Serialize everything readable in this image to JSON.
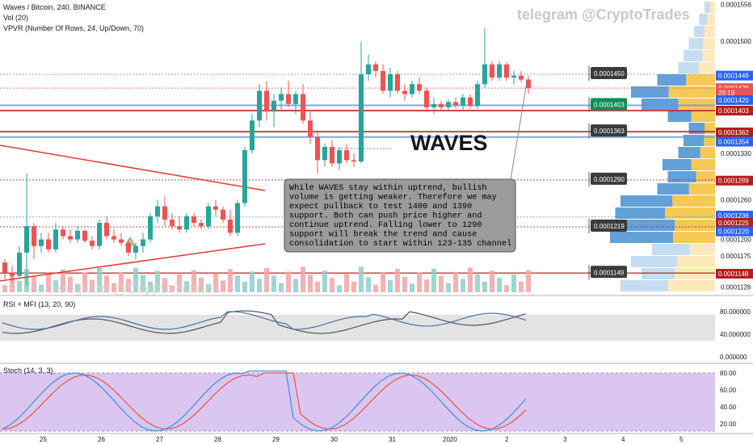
{
  "header": {
    "symbol_line": "Waves / Bitcoin, 240, BINANCE",
    "vol_line": "Vol (20)",
    "vpvr_line": "VPVR (Number Of Rows, 24, Up/Down, 70)",
    "watermark": "telegram @CryptoTrades"
  },
  "colors": {
    "up": "#26a69a",
    "down": "#ef5350",
    "vol_up": "#8fcfc9",
    "vol_down": "#f5a5a3",
    "vpvr_up": "#5b9bd5",
    "vpvr_down": "#f5c242",
    "stoch_bg": "#dbc6f2",
    "rsi_bg": "#e3e3e3"
  },
  "annotation": {
    "title": "WAVES",
    "note": "While WAVES stay within uptrend, bullish\nvolume is getting weaker. Therefore we may\nexpect pullback to test 1400 and 1390\nsupport. Both can push price higher and\ncontinue uptrend. Falling lower to 1290\nsupport will break the trend and cause\nconsolidation to start within 123-135 channel"
  },
  "price_flags": [
    {
      "label": "0.0001450",
      "value": 0.000145,
      "green": false
    },
    {
      "label": "0.0001403",
      "value": 0.0001403,
      "green": true
    },
    {
      "label": "0.0001363",
      "value": 0.0001363,
      "green": false
    },
    {
      "label": "0.0001290",
      "value": 0.000129,
      "green": false
    },
    {
      "label": "0.0001219",
      "value": 0.0001219,
      "green": false
    },
    {
      "label": "0.0001149",
      "value": 0.0001149,
      "green": false
    }
  ],
  "price_axis": {
    "ticks": [
      "0.0001556",
      "0.0001500",
      "0.0001330",
      "0.0001260",
      "0.0001200",
      "0.0001175",
      "0.0001128"
    ],
    "badges": [
      {
        "label": "0.0001448",
        "color": "#2962ff",
        "value": 0.0001448
      },
      {
        "label": "0.0001429",
        "color": "#ef5350",
        "value": 0.0001429
      },
      {
        "label": "20:19",
        "color": "#ef5350",
        "value": 0.0001422
      },
      {
        "label": "0.0001420",
        "color": "#2962ff",
        "value": 0.0001411
      },
      {
        "label": "0.0001403",
        "color": "#b71c1c",
        "value": 0.0001395
      },
      {
        "label": "0.0001362",
        "color": "#b71c1c",
        "value": 0.0001362
      },
      {
        "label": "0.0001354",
        "color": "#2962ff",
        "value": 0.0001348
      },
      {
        "label": "0.0001289",
        "color": "#b71c1c",
        "value": 0.0001289
      },
      {
        "label": "0.0001236",
        "color": "#2962ff",
        "value": 0.0001236
      },
      {
        "label": "0.0001225",
        "color": "#b71c1c",
        "value": 0.0001225
      },
      {
        "label": "0.0001220",
        "color": "#2962ff",
        "value": 0.0001212
      },
      {
        "label": "0.0001148",
        "color": "#b71c1c",
        "value": 0.0001148
      }
    ]
  },
  "rsi": {
    "label": "RSI + MFI (13, 20, 90)",
    "ticks": [
      "80.000000",
      "40.000000",
      "0.000000"
    ]
  },
  "stoch": {
    "label": "Stoch (14, 3, 3)",
    "ticks": [
      "80.00",
      "60.00",
      "40.00",
      "20.00"
    ]
  },
  "time_axis": [
    "25",
    "26",
    "27",
    "28",
    "29",
    "30",
    "31",
    "2020",
    "2",
    "3",
    "4",
    "5"
  ],
  "chart_data": {
    "type": "candlestick",
    "title": "Waves / Bitcoin, 240, BINANCE",
    "ylim": [
      0.000112,
      0.000156
    ],
    "candles": [
      {
        "o": 0.0001165,
        "h": 0.000117,
        "l": 0.000114,
        "c": 0.000115
      },
      {
        "o": 0.000115,
        "h": 0.000116,
        "l": 0.0001135,
        "c": 0.0001145
      },
      {
        "o": 0.0001145,
        "h": 0.000119,
        "l": 0.000114,
        "c": 0.000118
      },
      {
        "o": 0.000118,
        "h": 0.00013,
        "l": 0.000113,
        "c": 0.000122
      },
      {
        "o": 0.000122,
        "h": 0.0001225,
        "l": 0.000117,
        "c": 0.000119
      },
      {
        "o": 0.000119,
        "h": 0.000121,
        "l": 0.000118,
        "c": 0.00012
      },
      {
        "o": 0.00012,
        "h": 0.000121,
        "l": 0.000118,
        "c": 0.0001185
      },
      {
        "o": 0.0001185,
        "h": 0.0001225,
        "l": 0.000118,
        "c": 0.0001215
      },
      {
        "o": 0.0001215,
        "h": 0.000122,
        "l": 0.00012,
        "c": 0.0001205
      },
      {
        "o": 0.0001205,
        "h": 0.0001215,
        "l": 0.0001195,
        "c": 0.00012
      },
      {
        "o": 0.00012,
        "h": 0.000122,
        "l": 0.0001195,
        "c": 0.0001213
      },
      {
        "o": 0.0001213,
        "h": 0.0001215,
        "l": 0.0001195,
        "c": 0.0001198
      },
      {
        "o": 0.0001198,
        "h": 0.0001205,
        "l": 0.0001185,
        "c": 0.000119
      },
      {
        "o": 0.000119,
        "h": 0.000123,
        "l": 0.0001185,
        "c": 0.0001225
      },
      {
        "o": 0.0001225,
        "h": 0.0001235,
        "l": 0.00012,
        "c": 0.0001205
      },
      {
        "o": 0.0001205,
        "h": 0.0001215,
        "l": 0.0001195,
        "c": 0.00012
      },
      {
        "o": 0.00012,
        "h": 0.000121,
        "l": 0.000119,
        "c": 0.0001195
      },
      {
        "o": 0.0001195,
        "h": 0.00012,
        "l": 0.0001175,
        "c": 0.000118
      },
      {
        "o": 0.000118,
        "h": 0.0001195,
        "l": 0.000117,
        "c": 0.000119
      },
      {
        "o": 0.000119,
        "h": 0.000121,
        "l": 0.000118,
        "c": 0.00012
      },
      {
        "o": 0.00012,
        "h": 0.000124,
        "l": 0.0001195,
        "c": 0.0001235
      },
      {
        "o": 0.0001235,
        "h": 0.000126,
        "l": 0.0001225,
        "c": 0.000125
      },
      {
        "o": 0.000125,
        "h": 0.0001265,
        "l": 0.000122,
        "c": 0.000123
      },
      {
        "o": 0.000123,
        "h": 0.000124,
        "l": 0.0001215,
        "c": 0.000122
      },
      {
        "o": 0.000122,
        "h": 0.0001235,
        "l": 0.000121,
        "c": 0.0001215
      },
      {
        "o": 0.0001215,
        "h": 0.000124,
        "l": 0.000121,
        "c": 0.0001235
      },
      {
        "o": 0.0001235,
        "h": 0.000124,
        "l": 0.000122,
        "c": 0.0001225
      },
      {
        "o": 0.0001225,
        "h": 0.000123,
        "l": 0.0001215,
        "c": 0.000122
      },
      {
        "o": 0.000122,
        "h": 0.0001255,
        "l": 0.0001215,
        "c": 0.000125
      },
      {
        "o": 0.000125,
        "h": 0.000126,
        "l": 0.0001235,
        "c": 0.0001245
      },
      {
        "o": 0.0001245,
        "h": 0.000125,
        "l": 0.0001225,
        "c": 0.000123
      },
      {
        "o": 0.000123,
        "h": 0.0001245,
        "l": 0.0001205,
        "c": 0.000121
      },
      {
        "o": 0.000121,
        "h": 0.000126,
        "l": 0.0001205,
        "c": 0.0001255
      },
      {
        "o": 0.0001255,
        "h": 0.000134,
        "l": 0.000125,
        "c": 0.0001335
      },
      {
        "o": 0.0001335,
        "h": 0.000139,
        "l": 0.000133,
        "c": 0.000138
      },
      {
        "o": 0.000138,
        "h": 0.0001435,
        "l": 0.000137,
        "c": 0.0001425
      },
      {
        "o": 0.0001425,
        "h": 0.000144,
        "l": 0.000138,
        "c": 0.0001395
      },
      {
        "o": 0.0001395,
        "h": 0.000142,
        "l": 0.000137,
        "c": 0.000141
      },
      {
        "o": 0.000141,
        "h": 0.000143,
        "l": 0.0001395,
        "c": 0.000142
      },
      {
        "o": 0.000142,
        "h": 0.000144,
        "l": 0.00014,
        "c": 0.0001405
      },
      {
        "o": 0.0001405,
        "h": 0.0001425,
        "l": 0.000139,
        "c": 0.000142
      },
      {
        "o": 0.000142,
        "h": 0.0001435,
        "l": 0.0001375,
        "c": 0.000138
      },
      {
        "o": 0.000138,
        "h": 0.0001395,
        "l": 0.0001345,
        "c": 0.0001355
      },
      {
        "o": 0.0001355,
        "h": 0.0001365,
        "l": 0.00013,
        "c": 0.000132
      },
      {
        "o": 0.000132,
        "h": 0.0001345,
        "l": 0.000131,
        "c": 0.000134
      },
      {
        "o": 0.000134,
        "h": 0.000135,
        "l": 0.000131,
        "c": 0.0001315
      },
      {
        "o": 0.0001315,
        "h": 0.000134,
        "l": 0.0001305,
        "c": 0.0001335
      },
      {
        "o": 0.0001335,
        "h": 0.0001345,
        "l": 0.0001315,
        "c": 0.000132
      },
      {
        "o": 0.000132,
        "h": 0.000133,
        "l": 0.000131,
        "c": 0.0001318
      },
      {
        "o": 0.0001318,
        "h": 0.00015,
        "l": 0.0001315,
        "c": 0.000145
      },
      {
        "o": 0.000145,
        "h": 0.000148,
        "l": 0.000144,
        "c": 0.0001465
      },
      {
        "o": 0.0001465,
        "h": 0.000147,
        "l": 0.0001445,
        "c": 0.0001455
      },
      {
        "o": 0.0001455,
        "h": 0.0001465,
        "l": 0.000142,
        "c": 0.0001425
      },
      {
        "o": 0.0001425,
        "h": 0.000146,
        "l": 0.0001415,
        "c": 0.000145
      },
      {
        "o": 0.000145,
        "h": 0.0001455,
        "l": 0.000142,
        "c": 0.0001425
      },
      {
        "o": 0.0001425,
        "h": 0.0001435,
        "l": 0.000141,
        "c": 0.000142
      },
      {
        "o": 0.000142,
        "h": 0.000144,
        "l": 0.0001415,
        "c": 0.0001435
      },
      {
        "o": 0.0001435,
        "h": 0.0001445,
        "l": 0.000142,
        "c": 0.0001425
      },
      {
        "o": 0.0001425,
        "h": 0.000143,
        "l": 0.0001395,
        "c": 0.00014
      },
      {
        "o": 0.00014,
        "h": 0.0001415,
        "l": 0.000139,
        "c": 0.0001405
      },
      {
        "o": 0.0001405,
        "h": 0.000141,
        "l": 0.0001395,
        "c": 0.00014
      },
      {
        "o": 0.00014,
        "h": 0.0001412,
        "l": 0.0001395,
        "c": 0.0001408
      },
      {
        "o": 0.0001408,
        "h": 0.0001415,
        "l": 0.0001398,
        "c": 0.0001403
      },
      {
        "o": 0.0001403,
        "h": 0.000142,
        "l": 0.0001395,
        "c": 0.0001415
      },
      {
        "o": 0.0001415,
        "h": 0.000142,
        "l": 0.0001398,
        "c": 0.0001402
      },
      {
        "o": 0.0001402,
        "h": 0.000144,
        "l": 0.0001398,
        "c": 0.0001435
      },
      {
        "o": 0.0001435,
        "h": 0.000152,
        "l": 0.000143,
        "c": 0.0001465
      },
      {
        "o": 0.0001465,
        "h": 0.000147,
        "l": 0.000144,
        "c": 0.0001445
      },
      {
        "o": 0.0001445,
        "h": 0.000147,
        "l": 0.000144,
        "c": 0.0001465
      },
      {
        "o": 0.0001465,
        "h": 0.0001468,
        "l": 0.000144,
        "c": 0.0001445
      },
      {
        "o": 0.0001445,
        "h": 0.0001455,
        "l": 0.0001435,
        "c": 0.0001448
      },
      {
        "o": 0.0001448,
        "h": 0.0001455,
        "l": 0.0001438,
        "c": 0.0001442
      },
      {
        "o": 0.0001442,
        "h": 0.0001448,
        "l": 0.000142,
        "c": 0.0001429
      }
    ]
  }
}
